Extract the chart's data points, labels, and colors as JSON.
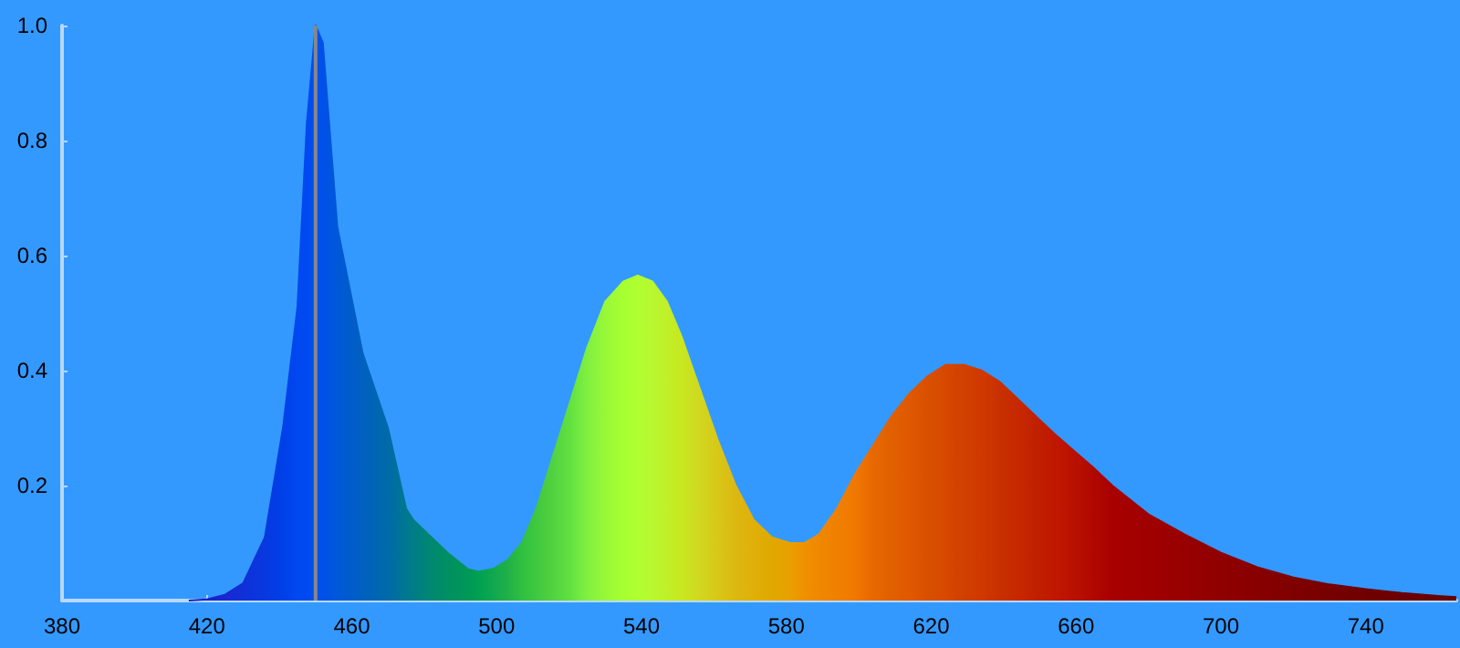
{
  "chart_data": {
    "type": "area",
    "x": [
      415,
      420,
      425,
      430,
      436,
      441,
      445,
      447.6,
      450,
      452,
      456,
      463,
      470,
      475,
      477,
      482,
      487,
      492,
      495,
      499,
      503,
      507,
      511,
      515,
      520,
      525,
      530,
      535,
      539,
      543,
      547,
      551,
      556,
      561,
      566,
      571,
      576,
      581,
      585,
      589,
      594,
      599,
      604,
      609,
      614,
      619,
      624,
      629,
      634,
      639,
      644,
      649,
      654,
      660,
      665,
      670,
      680,
      690,
      700,
      710,
      720,
      730,
      740,
      750,
      760,
      765
    ],
    "series": [
      {
        "values": [
          0,
          0.002,
          0.01,
          0.03,
          0.11,
          0.3,
          0.51,
          0.83,
          1.0,
          0.97,
          0.65,
          0.43,
          0.3,
          0.16,
          0.14,
          0.11,
          0.08,
          0.055,
          0.05,
          0.055,
          0.07,
          0.1,
          0.16,
          0.24,
          0.34,
          0.44,
          0.52,
          0.555,
          0.565,
          0.555,
          0.52,
          0.46,
          0.37,
          0.28,
          0.2,
          0.14,
          0.11,
          0.1,
          0.1,
          0.115,
          0.16,
          0.22,
          0.27,
          0.32,
          0.36,
          0.39,
          0.41,
          0.41,
          0.4,
          0.38,
          0.35,
          0.32,
          0.29,
          0.257,
          0.23,
          0.2,
          0.15,
          0.115,
          0.083,
          0.058,
          0.04,
          0.028,
          0.02,
          0.013,
          0.008,
          0.006
        ],
        "colors": [
          "#2020b0",
          "#1a20c8",
          "#1828d0",
          "#1030d8",
          "#0838e0",
          "#0040e8",
          "#0048f0",
          "#0048f0",
          "#0050f0",
          "#0050e8",
          "#0058d8",
          "#0060c0",
          "#006aa8",
          "#007890",
          "#007c88",
          "#008870",
          "#009060",
          "#009858",
          "#00a050",
          "#10a850",
          "#20b048",
          "#30c040",
          "#40c840",
          "#50d040",
          "#60e040",
          "#80f040",
          "#98f838",
          "#a8ff30",
          "#b0ff30",
          "#b8f830",
          "#c0f028",
          "#c8e820",
          "#d0d820",
          "#d8c818",
          "#dcb810",
          "#e0b008",
          "#e0a800",
          "#e8a000",
          "#f09000",
          "#f08800",
          "#f08000",
          "#f07800",
          "#e86800",
          "#e06000",
          "#e05800",
          "#d85000",
          "#d84800",
          "#d04000",
          "#d03800",
          "#c83000",
          "#c82800",
          "#c02000",
          "#c01800",
          "#b81000",
          "#b00800",
          "#a80000",
          "#a00000",
          "#980000",
          "#900000",
          "#880000",
          "#800000",
          "#780000",
          "#700000",
          "#6c0000",
          "#680000",
          "#640000"
        ]
      }
    ],
    "xlim": [
      380,
      765
    ],
    "xticks": [
      380,
      420,
      460,
      500,
      540,
      580,
      620,
      660,
      700,
      740
    ],
    "ylim": [
      0,
      1
    ],
    "yticks": [
      0.2,
      0.4,
      0.6,
      0.8,
      {
        "value": 1,
        "label": "1.0"
      }
    ],
    "ref_lines": [
      {
        "axis": "x",
        "value": 450,
        "color": "#888888"
      }
    ]
  }
}
